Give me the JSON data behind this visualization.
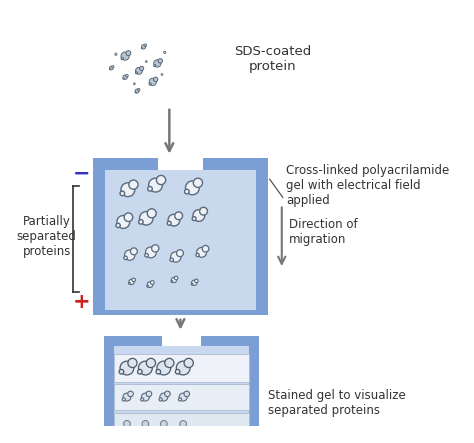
{
  "bg_color": "#ffffff",
  "gel_frame_color": "#7b9fd4",
  "gel_inner_color": "#c8d9ee",
  "gel_inner_color2": "#dce8f5",
  "protein_fill": "#e8ecf0",
  "protein_edge": "#5a6a7a",
  "minus_color": "#3333bb",
  "plus_color": "#cc2222",
  "arrow_color": "#777777",
  "text_color": "#333333",
  "label_sds": "SDS-coated\nprotein",
  "label_cross_line1": "Cross-linked polyacrilamide",
  "label_cross_line2": "gel with electrical field",
  "label_cross_line3": "applied",
  "label_dir_line1": "Direction of",
  "label_dir_line2": "migration",
  "label_partial_line1": "Partially",
  "label_partial_line2": "separated",
  "label_partial_line3": "proteins",
  "label_stained_line1": "Stained gel to visualize",
  "label_stained_line2": "separated proteins"
}
